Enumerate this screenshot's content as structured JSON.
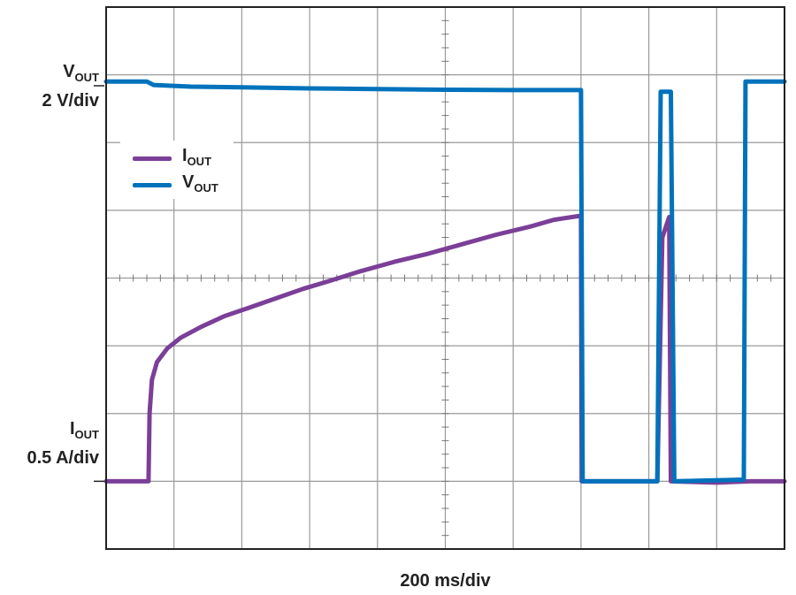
{
  "chart_data": {
    "type": "line",
    "xlabel": "200 ms/div",
    "grid": true,
    "divisions": {
      "x": 10,
      "y": 8
    },
    "xlim": [
      0,
      2000
    ],
    "x_unit": "ms",
    "channel_labels": {
      "vout": {
        "name": "V",
        "sub": "OUT",
        "scale": "2 V/div"
      },
      "iout": {
        "name": "I",
        "sub": "OUT",
        "scale": "0.5 A/div"
      }
    },
    "legend": {
      "placement": "top-left",
      "entries": [
        {
          "name": "I",
          "sub": "OUT",
          "color": "#7b3f98"
        },
        {
          "name": "V",
          "sub": "OUT",
          "color": "#0072bb"
        }
      ]
    },
    "series": [
      {
        "name": "IOUT",
        "color": "#7b3f98",
        "unit": "A",
        "volts_per_div": 0.5,
        "ground_div": 1.0,
        "points": [
          [
            0,
            0.0
          ],
          [
            60,
            0.0
          ],
          [
            125,
            0.0
          ],
          [
            128,
            0.5
          ],
          [
            135,
            0.75
          ],
          [
            150,
            0.88
          ],
          [
            180,
            0.98
          ],
          [
            220,
            1.06
          ],
          [
            280,
            1.14
          ],
          [
            350,
            1.22
          ],
          [
            420,
            1.28
          ],
          [
            500,
            1.35
          ],
          [
            580,
            1.42
          ],
          [
            660,
            1.48
          ],
          [
            750,
            1.55
          ],
          [
            850,
            1.62
          ],
          [
            950,
            1.68
          ],
          [
            1050,
            1.75
          ],
          [
            1150,
            1.82
          ],
          [
            1250,
            1.88
          ],
          [
            1320,
            1.93
          ],
          [
            1400,
            1.96
          ],
          [
            1402,
            0.0
          ],
          [
            1620,
            0.0
          ],
          [
            1625,
            0.0
          ],
          [
            1640,
            1.8
          ],
          [
            1660,
            1.95
          ],
          [
            1665,
            0.0
          ],
          [
            1800,
            -0.01
          ],
          [
            1900,
            0.0
          ],
          [
            2000,
            0.0
          ]
        ]
      },
      {
        "name": "VOUT",
        "color": "#0072bb",
        "unit": "V",
        "volts_per_div": 2,
        "ground_div": 1.0,
        "points": [
          [
            0,
            11.8
          ],
          [
            120,
            11.8
          ],
          [
            140,
            11.7
          ],
          [
            250,
            11.65
          ],
          [
            400,
            11.63
          ],
          [
            600,
            11.6
          ],
          [
            800,
            11.58
          ],
          [
            1000,
            11.56
          ],
          [
            1200,
            11.55
          ],
          [
            1400,
            11.55
          ],
          [
            1405,
            0.0
          ],
          [
            1625,
            0.0
          ],
          [
            1635,
            11.5
          ],
          [
            1665,
            11.5
          ],
          [
            1675,
            0.0
          ],
          [
            1880,
            0.05
          ],
          [
            1885,
            11.8
          ],
          [
            2000,
            11.8
          ]
        ]
      }
    ]
  }
}
